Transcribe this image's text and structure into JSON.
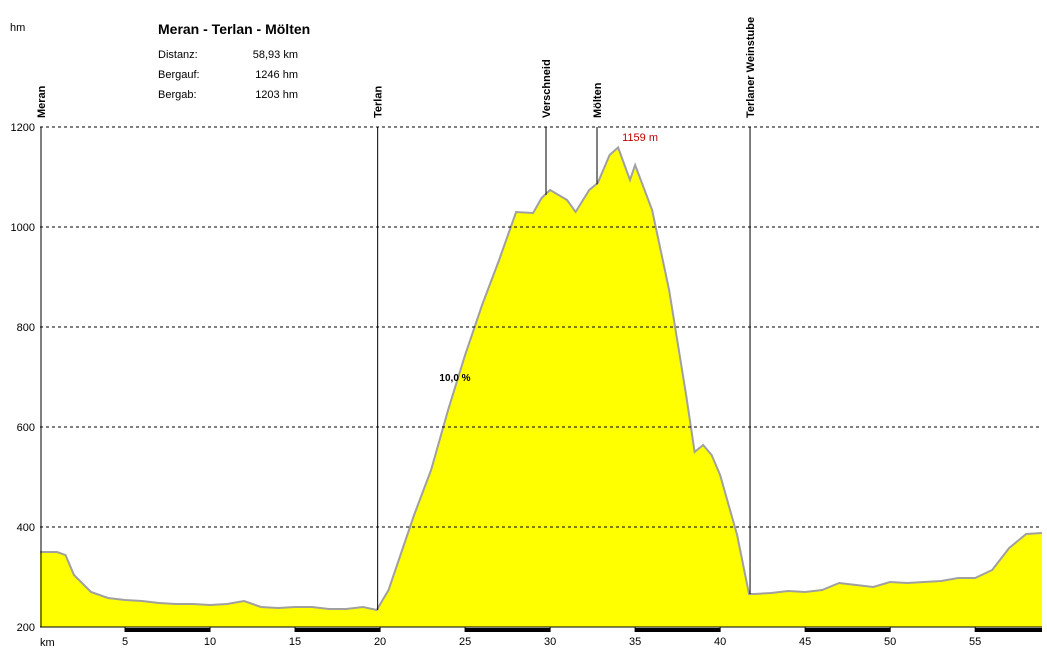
{
  "chart_data": {
    "type": "area",
    "title": "Meran - Terlan - Mölten",
    "stats": [
      {
        "label": "Distanz:",
        "value": "58,93 km"
      },
      {
        "label": "Bergauf:",
        "value": "1246 hm"
      },
      {
        "label": "Bergab:",
        "value": "1203 hm"
      }
    ],
    "y_label": "hm",
    "x_label": "km",
    "annotation": "10,0 %",
    "peak": {
      "x": 34,
      "value": 1159,
      "label": "1159 m"
    },
    "color": "#ffff00",
    "line_color": "#a0a0a0",
    "x": [
      0,
      1,
      1.5,
      2,
      3,
      4,
      5,
      6,
      7,
      8,
      9,
      10,
      11,
      12,
      13,
      14,
      15,
      16,
      17,
      18,
      19,
      19.8,
      20.5,
      21,
      22,
      23,
      24,
      25,
      26,
      27,
      28,
      29,
      29.5,
      30,
      31,
      31.5,
      32.3,
      32.8,
      33.5,
      34,
      34.7,
      35,
      36,
      37,
      38,
      38.5,
      39,
      39.5,
      40,
      41,
      41.7,
      42,
      43,
      44,
      45,
      46,
      47,
      48,
      49,
      50,
      51,
      52,
      53,
      54,
      55,
      56,
      57,
      58,
      58.93
    ],
    "values": [
      350,
      350,
      344,
      304,
      270,
      258,
      254,
      252,
      248,
      246,
      246,
      244,
      246,
      252,
      240,
      238,
      240,
      240,
      236,
      236,
      240,
      234,
      274,
      324,
      424,
      514,
      634,
      744,
      844,
      934,
      1030,
      1028,
      1058,
      1074,
      1054,
      1030,
      1074,
      1088,
      1144,
      1159,
      1094,
      1124,
      1034,
      874,
      664,
      550,
      564,
      544,
      504,
      384,
      266,
      266,
      268,
      272,
      270,
      274,
      288,
      284,
      280,
      290,
      288,
      290,
      292,
      298,
      298,
      314,
      358,
      386,
      388
    ],
    "waypoints": [
      {
        "name": "Meran",
        "km": 0
      },
      {
        "name": "Terlan",
        "km": 19.8
      },
      {
        "name": "Verschneid",
        "km": 29.7
      },
      {
        "name": "Mölten",
        "km": 32.7
      },
      {
        "name": "Terlaner Weinstube",
        "km": 41.7
      }
    ],
    "xlim": [
      0,
      58.93
    ],
    "xticks": [
      5,
      10,
      15,
      20,
      25,
      30,
      35,
      40,
      45,
      50,
      55
    ],
    "ylim": [
      200,
      1200
    ],
    "yticks": [
      200,
      400,
      600,
      800,
      1000,
      1200
    ],
    "grid": true
  }
}
